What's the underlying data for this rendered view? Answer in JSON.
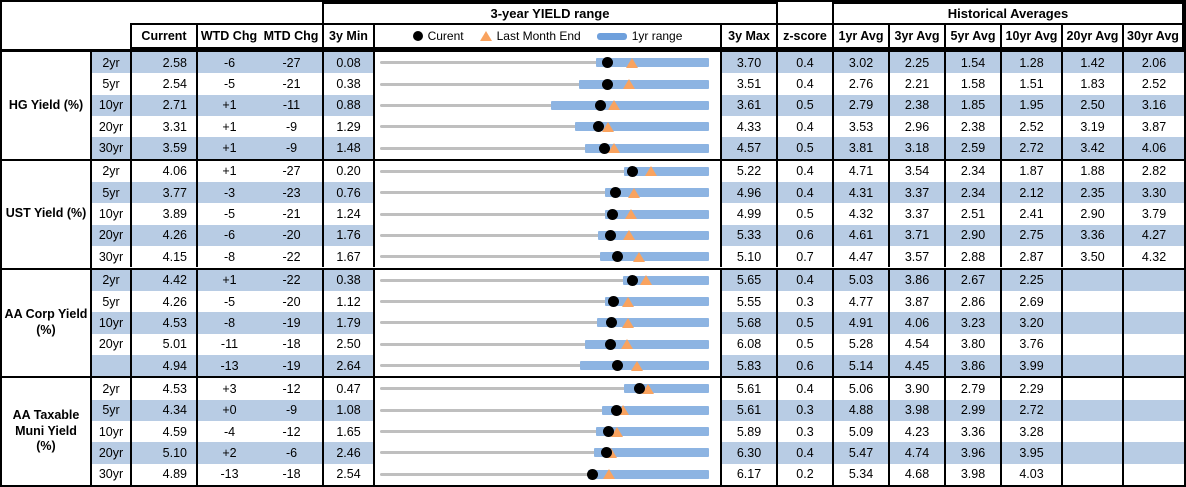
{
  "header": {
    "range_title": "3-year YIELD range",
    "hist_title": "Historical Averages",
    "current": "Current",
    "wtd": "WTD Chg",
    "mtd": "MTD Chg",
    "min": "3y Min",
    "max": "3y Max",
    "z": "z-score",
    "avg_cols": [
      "1yr Avg",
      "3yr Avg",
      "5yr Avg",
      "10yr Avg",
      "20yr Avg",
      "30yr Avg"
    ]
  },
  "legend": {
    "current": "Curent",
    "last_month_end": "Last Month End",
    "range_1yr": "1yr range",
    "current_icon": "black-dot",
    "last_month_end_icon": "orange-triangle",
    "range_1yr_icon": "blue-bar"
  },
  "colors": {
    "band_blue": "#B8CCE4",
    "bar_blue": "#8DB4E2",
    "legend_bar_blue": "#6FA0DC",
    "track_gray": "#BFBFBF",
    "marker_orange": "#F9A35F",
    "dot_black": "#000000",
    "border_black": "#000000"
  },
  "chart_data": {
    "type": "table",
    "row_chart_type": "range-dot",
    "title": "3-year YIELD range",
    "legend_entries": [
      "Curent",
      "Last Month End",
      "1yr range"
    ],
    "notes": "Each row chart maps [min_3y, max_3y] across the cell; blue bar = 1yr range (estimated), dot = current, triangle = last month end (current - mtd_chg/100).",
    "groups": [
      {
        "label": "HG Yield (%)",
        "rows": [
          {
            "tenor": "2yr",
            "current": 2.58,
            "wtd_chg": -6,
            "mtd_chg": -27,
            "min_3y": 0.08,
            "max_3y": 3.7,
            "z_score": 0.4,
            "last_month_end": 2.85,
            "range_1yr": [
              2.46,
              3.7
            ],
            "avgs": [
              3.02,
              2.25,
              1.54,
              1.28,
              1.42,
              2.06
            ]
          },
          {
            "tenor": "5yr",
            "current": 2.54,
            "wtd_chg": -5,
            "mtd_chg": -21,
            "min_3y": 0.38,
            "max_3y": 3.51,
            "z_score": 0.4,
            "last_month_end": 2.75,
            "range_1yr": [
              2.27,
              3.51
            ],
            "avgs": [
              2.76,
              2.21,
              1.58,
              1.51,
              1.83,
              2.52
            ]
          },
          {
            "tenor": "10yr",
            "current": 2.71,
            "wtd_chg": 1,
            "mtd_chg": -11,
            "min_3y": 0.88,
            "max_3y": 3.61,
            "z_score": 0.5,
            "last_month_end": 2.82,
            "range_1yr": [
              2.3,
              3.61
            ],
            "avgs": [
              2.79,
              2.38,
              1.85,
              1.95,
              2.5,
              3.16
            ]
          },
          {
            "tenor": "20yr",
            "current": 3.31,
            "wtd_chg": 1,
            "mtd_chg": -9,
            "min_3y": 1.29,
            "max_3y": 4.33,
            "z_score": 0.4,
            "last_month_end": 3.4,
            "range_1yr": [
              3.09,
              4.33
            ],
            "avgs": [
              3.53,
              2.96,
              2.38,
              2.52,
              3.19,
              3.87
            ]
          },
          {
            "tenor": "30yr",
            "current": 3.59,
            "wtd_chg": 1,
            "mtd_chg": -9,
            "min_3y": 1.48,
            "max_3y": 4.57,
            "z_score": 0.5,
            "last_month_end": 3.68,
            "range_1yr": [
              3.41,
              4.57
            ],
            "avgs": [
              3.81,
              3.18,
              2.59,
              2.72,
              3.42,
              4.06
            ]
          }
        ]
      },
      {
        "label": "UST Yield (%)",
        "rows": [
          {
            "tenor": "2yr",
            "current": 4.06,
            "wtd_chg": 1,
            "mtd_chg": -27,
            "min_3y": 0.2,
            "max_3y": 5.22,
            "z_score": 0.4,
            "last_month_end": 4.33,
            "range_1yr": [
              3.92,
              5.22
            ],
            "avgs": [
              4.71,
              3.54,
              2.34,
              1.87,
              1.88,
              2.82
            ]
          },
          {
            "tenor": "5yr",
            "current": 3.77,
            "wtd_chg": -3,
            "mtd_chg": -23,
            "min_3y": 0.76,
            "max_3y": 4.96,
            "z_score": 0.4,
            "last_month_end": 4.0,
            "range_1yr": [
              3.63,
              4.96
            ],
            "avgs": [
              4.31,
              3.37,
              2.34,
              2.12,
              2.35,
              3.3
            ]
          },
          {
            "tenor": "10yr",
            "current": 3.89,
            "wtd_chg": -5,
            "mtd_chg": -21,
            "min_3y": 1.24,
            "max_3y": 4.99,
            "z_score": 0.5,
            "last_month_end": 4.1,
            "range_1yr": [
              3.8,
              4.99
            ],
            "avgs": [
              4.32,
              3.37,
              2.51,
              2.41,
              2.9,
              3.79
            ]
          },
          {
            "tenor": "20yr",
            "current": 4.26,
            "wtd_chg": -6,
            "mtd_chg": -20,
            "min_3y": 1.76,
            "max_3y": 5.33,
            "z_score": 0.6,
            "last_month_end": 4.46,
            "range_1yr": [
              4.13,
              5.33
            ],
            "avgs": [
              4.61,
              3.71,
              2.9,
              2.75,
              3.36,
              4.27
            ]
          },
          {
            "tenor": "30yr",
            "current": 4.15,
            "wtd_chg": -8,
            "mtd_chg": -22,
            "min_3y": 1.67,
            "max_3y": 5.1,
            "z_score": 0.7,
            "last_month_end": 4.37,
            "range_1yr": [
              3.96,
              5.1
            ],
            "avgs": [
              4.47,
              3.57,
              2.88,
              2.87,
              3.5,
              4.32
            ]
          }
        ]
      },
      {
        "label": "AA Corp Yield (%)",
        "rows": [
          {
            "tenor": "2yr",
            "current": 4.42,
            "wtd_chg": 1,
            "mtd_chg": -22,
            "min_3y": 0.38,
            "max_3y": 5.65,
            "z_score": 0.4,
            "last_month_end": 4.64,
            "range_1yr": [
              4.27,
              5.65
            ],
            "avgs": [
              5.03,
              3.86,
              2.67,
              2.25,
              null,
              null
            ]
          },
          {
            "tenor": "5yr",
            "current": 4.26,
            "wtd_chg": -5,
            "mtd_chg": -20,
            "min_3y": 1.12,
            "max_3y": 5.55,
            "z_score": 0.3,
            "last_month_end": 4.46,
            "range_1yr": [
              4.15,
              5.55
            ],
            "avgs": [
              4.77,
              3.87,
              2.86,
              2.69,
              null,
              null
            ]
          },
          {
            "tenor": "10yr",
            "current": 4.53,
            "wtd_chg": -8,
            "mtd_chg": -19,
            "min_3y": 1.79,
            "max_3y": 5.68,
            "z_score": 0.5,
            "last_month_end": 4.72,
            "range_1yr": [
              4.35,
              5.68
            ],
            "avgs": [
              4.91,
              4.06,
              3.23,
              3.2,
              null,
              null
            ]
          },
          {
            "tenor": "20yr",
            "current": 5.01,
            "wtd_chg": -11,
            "mtd_chg": -18,
            "min_3y": 2.5,
            "max_3y": 6.08,
            "z_score": 0.5,
            "last_month_end": 5.19,
            "range_1yr": [
              4.73,
              6.08
            ],
            "avgs": [
              5.28,
              4.54,
              3.8,
              3.76,
              null,
              null
            ]
          },
          {
            "tenor": "",
            "current": 4.94,
            "wtd_chg": -13,
            "mtd_chg": -19,
            "min_3y": 2.64,
            "max_3y": 5.83,
            "z_score": 0.6,
            "last_month_end": 5.13,
            "range_1yr": [
              4.58,
              5.83
            ],
            "avgs": [
              5.14,
              4.45,
              3.86,
              3.99,
              null,
              null
            ]
          }
        ]
      },
      {
        "label": "AA Taxable Muni Yield (%)",
        "rows": [
          {
            "tenor": "2yr",
            "current": 4.53,
            "wtd_chg": 3,
            "mtd_chg": -12,
            "min_3y": 0.47,
            "max_3y": 5.61,
            "z_score": 0.4,
            "last_month_end": 4.65,
            "range_1yr": [
              4.28,
              5.61
            ],
            "avgs": [
              5.06,
              3.9,
              2.79,
              2.29,
              null,
              null
            ]
          },
          {
            "tenor": "5yr",
            "current": 4.34,
            "wtd_chg": 0,
            "mtd_chg": -9,
            "min_3y": 1.08,
            "max_3y": 5.61,
            "z_score": 0.3,
            "last_month_end": 4.43,
            "range_1yr": [
              4.14,
              5.61
            ],
            "avgs": [
              4.88,
              3.98,
              2.99,
              2.72,
              null,
              null
            ]
          },
          {
            "tenor": "10yr",
            "current": 4.59,
            "wtd_chg": -4,
            "mtd_chg": -12,
            "min_3y": 1.65,
            "max_3y": 5.89,
            "z_score": 0.3,
            "last_month_end": 4.71,
            "range_1yr": [
              4.44,
              5.89
            ],
            "avgs": [
              5.09,
              4.23,
              3.36,
              3.28,
              null,
              null
            ]
          },
          {
            "tenor": "20yr",
            "current": 5.1,
            "wtd_chg": 2,
            "mtd_chg": -6,
            "min_3y": 2.46,
            "max_3y": 6.3,
            "z_score": 0.4,
            "last_month_end": 5.16,
            "range_1yr": [
              4.96,
              6.3
            ],
            "avgs": [
              5.47,
              4.74,
              3.96,
              3.95,
              null,
              null
            ]
          },
          {
            "tenor": "30yr",
            "current": 4.89,
            "wtd_chg": -13,
            "mtd_chg": -18,
            "min_3y": 2.54,
            "max_3y": 6.17,
            "z_score": 0.2,
            "last_month_end": 5.07,
            "range_1yr": [
              4.83,
              6.17
            ],
            "avgs": [
              5.34,
              4.68,
              3.98,
              4.03,
              null,
              null
            ]
          }
        ]
      }
    ]
  }
}
